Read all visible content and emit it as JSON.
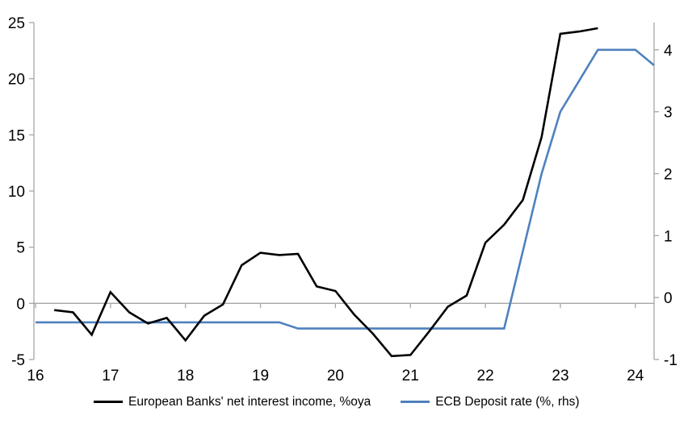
{
  "chart_data": {
    "type": "line",
    "title": "",
    "x_axis": {
      "ticks": [
        16,
        17,
        18,
        19,
        20,
        21,
        22,
        23,
        24
      ],
      "min": 16,
      "max": 24.25
    },
    "left_axis": {
      "ticks": [
        -5,
        0,
        5,
        10,
        15,
        20,
        25
      ],
      "min": -5,
      "max": 25
    },
    "right_axis": {
      "ticks": [
        -1,
        0,
        1,
        2,
        3,
        4
      ],
      "min": -1,
      "max": 4.44
    },
    "grid": "zero-line-only",
    "legend_position": "bottom",
    "series": [
      {
        "name": "European Banks' net interest income, %oya",
        "axis": "left",
        "color": "#000000",
        "x": [
          16.25,
          16.5,
          16.75,
          17.0,
          17.25,
          17.5,
          17.75,
          18.0,
          18.25,
          18.5,
          18.75,
          19.0,
          19.25,
          19.5,
          19.75,
          20.0,
          20.25,
          20.5,
          20.75,
          21.0,
          21.25,
          21.5,
          21.75,
          22.0,
          22.25,
          22.5,
          22.75,
          23.0,
          23.25,
          23.5
        ],
        "values": [
          -0.6,
          -0.8,
          -2.8,
          1.0,
          -0.8,
          -1.8,
          -1.3,
          -3.3,
          -1.1,
          -0.1,
          3.4,
          4.5,
          4.3,
          4.4,
          1.5,
          1.1,
          -1.0,
          -2.7,
          -4.7,
          -4.6,
          -2.5,
          -0.3,
          0.7,
          5.4,
          7.0,
          9.2,
          14.8,
          24.0,
          24.2,
          24.5
        ]
      },
      {
        "name": "ECB Deposit rate (%, rhs)",
        "axis": "right",
        "color": "#4f81bd",
        "x": [
          16.0,
          16.25,
          16.5,
          16.75,
          17.0,
          17.25,
          17.5,
          17.75,
          18.0,
          18.25,
          18.5,
          18.75,
          19.0,
          19.25,
          19.5,
          19.75,
          20.0,
          20.25,
          20.5,
          20.75,
          21.0,
          21.25,
          21.5,
          21.75,
          22.0,
          22.25,
          22.5,
          22.75,
          23.0,
          23.25,
          23.5,
          23.75,
          24.0,
          24.25
        ],
        "values": [
          -0.4,
          -0.4,
          -0.4,
          -0.4,
          -0.4,
          -0.4,
          -0.4,
          -0.4,
          -0.4,
          -0.4,
          -0.4,
          -0.4,
          -0.4,
          -0.4,
          -0.5,
          -0.5,
          -0.5,
          -0.5,
          -0.5,
          -0.5,
          -0.5,
          -0.5,
          -0.5,
          -0.5,
          -0.5,
          -0.5,
          0.75,
          2.0,
          3.0,
          3.5,
          4.0,
          4.0,
          4.0,
          3.75
        ]
      }
    ]
  },
  "colors": {
    "axis": "#a6a6a6",
    "text": "#000000",
    "background": "#ffffff"
  }
}
